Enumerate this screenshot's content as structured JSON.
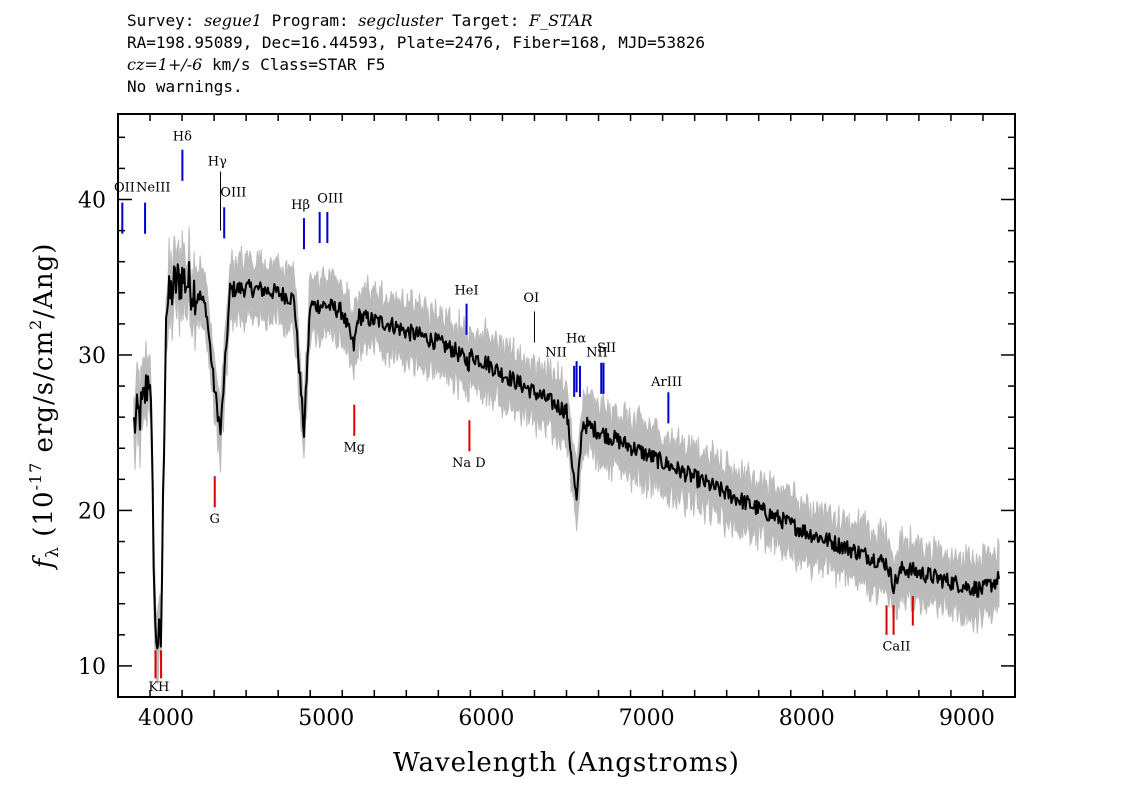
{
  "header": {
    "line1": {
      "survey_label": "Survey: ",
      "survey": "segue1",
      "program_label": " Program: ",
      "program": "segcluster",
      "target_label": " Target: ",
      "target": "F_STAR"
    },
    "line2": "RA=198.95089, Dec=16.44593, Plate=2476, Fiber=168, MJD=53826",
    "line3": {
      "cz": "cz=1+/-6",
      "rest": " km/s Class=STAR F5"
    },
    "line4": "No warnings."
  },
  "chart_data": {
    "type": "line",
    "xlabel": "Wavelength (Angstroms)",
    "ylabel": "f_λ (10^-17 erg/s/cm^2/Ang)",
    "xlim": [
      3700,
      9300
    ],
    "ylim": [
      8,
      45.5
    ],
    "xticks": [
      4000,
      5000,
      6000,
      7000,
      8000,
      9000
    ],
    "yticks": [
      10,
      20,
      30,
      40
    ],
    "grid": false,
    "colors": {
      "spectrum": "#000000",
      "error_band": "#bbbbbb",
      "emission_line": "#0000cc",
      "absorption_line": "#dd0000",
      "sky_line": "#000000"
    },
    "series": [
      {
        "role": "spectrum",
        "x": [
          3800,
          3850,
          3900,
          3933,
          3968,
          4000,
          4050,
          4101,
          4150,
          4200,
          4250,
          4300,
          4340,
          4400,
          4500,
          4600,
          4700,
          4800,
          4861,
          4900,
          5000,
          5100,
          5172,
          5200,
          5300,
          5400,
          5500,
          5600,
          5700,
          5800,
          5890,
          5900,
          6000,
          6100,
          6200,
          6300,
          6400,
          6500,
          6563,
          6600,
          6700,
          6800,
          6900,
          7000,
          7100,
          7200,
          7300,
          7400,
          7500,
          7600,
          7700,
          7800,
          7900,
          8000,
          8100,
          8200,
          8300,
          8400,
          8500,
          8542,
          8600,
          8700,
          8800,
          8900,
          9000,
          9100,
          9200
        ],
        "y": [
          25.5,
          26.5,
          29,
          12,
          11.5,
          33,
          34.5,
          35,
          34.5,
          34,
          33,
          28,
          25,
          34.2,
          34.3,
          34.2,
          34.0,
          33.6,
          25,
          33.2,
          33.2,
          32.8,
          30.5,
          32.5,
          32.2,
          32.0,
          31.5,
          31.2,
          30.8,
          30.3,
          29.5,
          30.0,
          29.5,
          28.8,
          28.2,
          27.6,
          27.0,
          26.4,
          20.5,
          25.6,
          25.1,
          24.6,
          24.1,
          23.6,
          23.1,
          22.6,
          22.1,
          21.6,
          21.1,
          20.6,
          20.1,
          19.6,
          19.1,
          18.6,
          18.2,
          17.8,
          17.4,
          17.0,
          16.6,
          15.2,
          16.3,
          16.0,
          15.7,
          15.4,
          15.1,
          14.9,
          15.6
        ]
      }
    ],
    "error_band": {
      "upper_offset": 1.8,
      "lower_offset": 1.8
    },
    "sky_marks": [
      {
        "name": "Hγ",
        "x": 4340,
        "y0": 38,
        "y1": 41.8
      },
      {
        "name": "OI",
        "x": 6300,
        "y0": 30.8,
        "y1": 32.8
      }
    ],
    "emission_lines": [
      {
        "name": "OII",
        "x": 3727,
        "y0": 37.8,
        "y1": 39.8
      },
      {
        "name": "NeIII",
        "x": 3869,
        "y0": 37.8,
        "y1": 39.8
      },
      {
        "name": "Hδ",
        "x": 4102,
        "y0": 41.2,
        "y1": 43.2
      },
      {
        "name": "OIII",
        "x": 4363,
        "y0": 37.5,
        "y1": 39.5
      },
      {
        "name": "Hβ",
        "x": 4861,
        "y0": 36.8,
        "y1": 38.8
      },
      {
        "name": "OIII",
        "x": 4959,
        "y0": 37.2,
        "y1": 39.2
      },
      {
        "name": "OIII",
        "x": 5007,
        "y0": 37.2,
        "y1": 39.2
      },
      {
        "name": "HeI",
        "x": 5876,
        "y0": 31.3,
        "y1": 33.3
      },
      {
        "name": "NII",
        "x": 6548,
        "y0": 27.3,
        "y1": 29.3
      },
      {
        "name": "Hα",
        "x": 6563,
        "y0": 27.6,
        "y1": 29.6
      },
      {
        "name": "NII",
        "x": 6584,
        "y0": 27.3,
        "y1": 29.3
      },
      {
        "name": "SII",
        "x": 6717,
        "y0": 27.5,
        "y1": 29.5
      },
      {
        "name": "SII",
        "x": 6731,
        "y0": 27.5,
        "y1": 29.5
      },
      {
        "name": "ArIII",
        "x": 7136,
        "y0": 25.6,
        "y1": 27.6
      }
    ],
    "absorption_lines": [
      {
        "name": "K",
        "x": 3934,
        "y0": 9.2,
        "y1": 11.0
      },
      {
        "name": "H",
        "x": 3969,
        "y0": 9.2,
        "y1": 11.0
      },
      {
        "name": "G",
        "x": 4304,
        "y0": 20.2,
        "y1": 22.2
      },
      {
        "name": "Mg",
        "x": 5175,
        "y0": 24.8,
        "y1": 26.8
      },
      {
        "name": "Na D",
        "x": 5894,
        "y0": 23.8,
        "y1": 25.8
      },
      {
        "name": "CaII",
        "x": 8498,
        "y0": 12.0,
        "y1": 13.9
      },
      {
        "name": "CaII",
        "x": 8542,
        "y0": 12.0,
        "y1": 13.9
      },
      {
        "name": "CaII",
        "x": 8662,
        "y0": 12.6,
        "y1": 14.5
      }
    ],
    "line_labels": [
      {
        "text": "OII",
        "x": 3740,
        "y": 40.5
      },
      {
        "text": "NeIII",
        "x": 3920,
        "y": 40.5
      },
      {
        "text": "Hδ",
        "x": 4102,
        "y": 43.8
      },
      {
        "text": "Hγ",
        "x": 4320,
        "y": 42.2
      },
      {
        "text": "OIII",
        "x": 4420,
        "y": 40.2
      },
      {
        "text": "Hβ",
        "x": 4840,
        "y": 39.4
      },
      {
        "text": "OIII",
        "x": 5025,
        "y": 39.8
      },
      {
        "text": "HeI",
        "x": 5876,
        "y": 33.9
      },
      {
        "text": "OI",
        "x": 6280,
        "y": 33.4
      },
      {
        "text": "NII",
        "x": 6435,
        "y": 29.9
      },
      {
        "text": "Hα",
        "x": 6560,
        "y": 30.8
      },
      {
        "text": "NII",
        "x": 6690,
        "y": 29.9
      },
      {
        "text": "SII",
        "x": 6750,
        "y": 30.2
      },
      {
        "text": "ArIII",
        "x": 7125,
        "y": 28.0
      },
      {
        "text": "KH",
        "x": 3955,
        "y": 8.4
      },
      {
        "text": "G",
        "x": 4304,
        "y": 19.2
      },
      {
        "text": "Mg",
        "x": 5175,
        "y": 23.8
      },
      {
        "text": "Na D",
        "x": 5890,
        "y": 22.8
      },
      {
        "text": "CaII",
        "x": 8560,
        "y": 11.0
      }
    ]
  }
}
